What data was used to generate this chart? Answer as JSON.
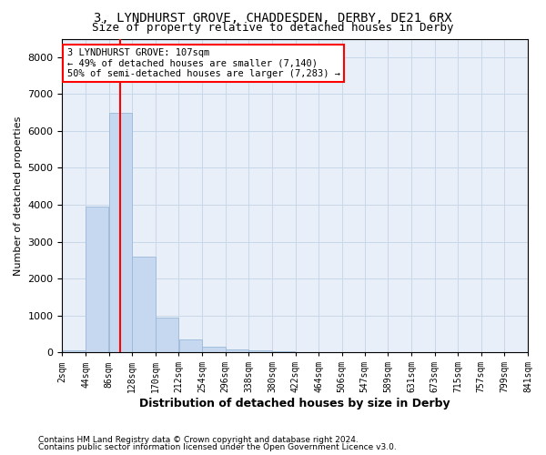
{
  "title": "3, LYNDHURST GROVE, CHADDESDEN, DERBY, DE21 6RX",
  "subtitle": "Size of property relative to detached houses in Derby",
  "xlabel": "Distribution of detached houses by size in Derby",
  "ylabel": "Number of detached properties",
  "footer_line1": "Contains HM Land Registry data © Crown copyright and database right 2024.",
  "footer_line2": "Contains public sector information licensed under the Open Government Licence v3.0.",
  "bar_color": "#c5d8f0",
  "bar_edge_color": "#9ab8d8",
  "grid_color": "#c8d8e8",
  "background_color": "#e8eff8",
  "annotation_line1": "3 LYNDHURST GROVE: 107sqm",
  "annotation_line2": "← 49% of detached houses are smaller (7,140)",
  "annotation_line3": "50% of semi-detached houses are larger (7,283) →",
  "property_line_x": 107,
  "ylim": [
    0,
    8500
  ],
  "xlim": [
    2,
    841
  ],
  "bin_edges": [
    2,
    44,
    86,
    128,
    170,
    212,
    254,
    296,
    338,
    380,
    422,
    464,
    506,
    547,
    589,
    631,
    673,
    715,
    757,
    799,
    841
  ],
  "bar_heights": [
    50,
    3950,
    6500,
    2600,
    950,
    350,
    150,
    80,
    50,
    40,
    0,
    0,
    0,
    0,
    0,
    0,
    0,
    0,
    0,
    0
  ],
  "tick_labels": [
    "2sqm",
    "44sqm",
    "86sqm",
    "128sqm",
    "170sqm",
    "212sqm",
    "254sqm",
    "296sqm",
    "338sqm",
    "380sqm",
    "422sqm",
    "464sqm",
    "506sqm",
    "547sqm",
    "589sqm",
    "631sqm",
    "673sqm",
    "715sqm",
    "757sqm",
    "799sqm",
    "841sqm"
  ],
  "title_fontsize": 10,
  "subtitle_fontsize": 9,
  "ylabel_fontsize": 8,
  "xlabel_fontsize": 9,
  "tick_fontsize": 7,
  "ytick_fontsize": 8,
  "ann_fontsize": 7.5,
  "footer_fontsize": 6.5
}
